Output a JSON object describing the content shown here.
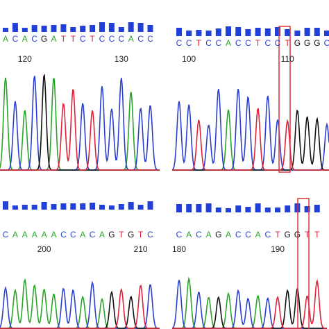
{
  "panels": [
    {
      "bases": [
        "A",
        "C",
        "A",
        "C",
        "G",
        "A",
        "T",
        "T",
        "C",
        "T",
        "C",
        "C",
        "C",
        "A",
        "C",
        "C"
      ],
      "positions": [
        120,
        130
      ]
    },
    {
      "bases": [
        "C",
        "C",
        "T",
        "C",
        "C",
        "A",
        "C",
        "C",
        "T",
        "C",
        "C",
        "T",
        "G",
        "G",
        "G",
        "C"
      ],
      "positions": [
        100,
        110
      ]
    },
    {
      "bases": [
        "C",
        "A",
        "A",
        "A",
        "A",
        "A",
        "C",
        "C",
        "A",
        "C",
        "A",
        "G",
        "T",
        "G",
        "T",
        "C"
      ],
      "positions": [
        200,
        210
      ]
    },
    {
      "bases": [
        "C",
        "A",
        "C",
        "A",
        "G",
        "A",
        "C",
        "C",
        "A",
        "C",
        "T",
        "G",
        "G",
        "T",
        "T"
      ],
      "positions": [
        180,
        190
      ]
    }
  ]
}
